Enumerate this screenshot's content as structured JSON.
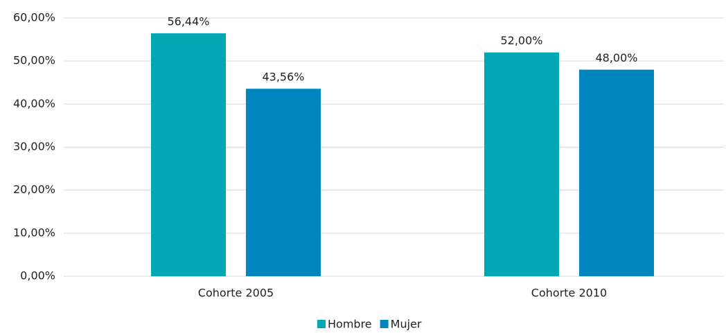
{
  "chart_data": {
    "type": "bar",
    "categories": [
      "Cohorte 2005",
      "Cohorte 2010"
    ],
    "series": [
      {
        "name": "Hombre",
        "color": "#00a8b5",
        "values": [
          56.44,
          52.0
        ],
        "value_labels": [
          "56,44%",
          "52,00%"
        ]
      },
      {
        "name": "Mujer",
        "color": "#0085bf",
        "values": [
          43.56,
          48.0
        ],
        "value_labels": [
          "43,56%",
          "48,00%"
        ]
      }
    ],
    "ylim": [
      0,
      60
    ],
    "yticks": [
      {
        "value": 0,
        "label": "0,00%"
      },
      {
        "value": 10,
        "label": "10,00%"
      },
      {
        "value": 20,
        "label": "20,00%"
      },
      {
        "value": 30,
        "label": "30,00%"
      },
      {
        "value": 40,
        "label": "40,00%"
      },
      {
        "value": 50,
        "label": "50,00%"
      },
      {
        "value": 60,
        "label": "60,00%"
      }
    ],
    "grid": true,
    "legend": "bottom"
  }
}
